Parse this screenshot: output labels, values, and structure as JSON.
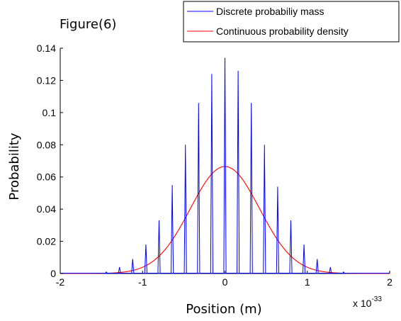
{
  "chart_data": {
    "type": "line",
    "figure_label": "Figure(6)",
    "xlabel": "Position (m)",
    "ylabel": "Probability",
    "x_multiplier": "x 10",
    "x_exponent": "-33",
    "xlim": [
      -2,
      2
    ],
    "ylim": [
      0,
      0.14
    ],
    "x_ticks": [
      -2,
      -1,
      0,
      1,
      2
    ],
    "x_tick_labels": [
      "-2",
      "-1",
      "0",
      "1",
      "2"
    ],
    "y_ticks": [
      0,
      0.02,
      0.04,
      0.06,
      0.08,
      0.1,
      0.12,
      0.14
    ],
    "y_tick_labels": [
      "0",
      "0.02",
      "0.04",
      "0.06",
      "0.08",
      "0.1",
      "0.12",
      "0.14"
    ],
    "grid": false,
    "legend_position": "top-right",
    "series": [
      {
        "name": "Discrete probabiliy mass",
        "color": "#0000ff",
        "style": "stems",
        "x": [
          -1.44,
          -1.28,
          -1.12,
          -0.96,
          -0.8,
          -0.64,
          -0.48,
          -0.32,
          -0.16,
          0,
          0.16,
          0.32,
          0.48,
          0.64,
          0.8,
          0.96,
          1.12,
          1.28,
          1.44
        ],
        "values": [
          0.001,
          0.004,
          0.009,
          0.018,
          0.033,
          0.055,
          0.08,
          0.106,
          0.124,
          0.134,
          0.126,
          0.106,
          0.08,
          0.054,
          0.033,
          0.018,
          0.009,
          0.004,
          0.001
        ]
      },
      {
        "name": "Continuous probability density",
        "color": "#ff0000",
        "style": "line",
        "peak": 0.0665,
        "sigma": 0.42
      }
    ]
  }
}
